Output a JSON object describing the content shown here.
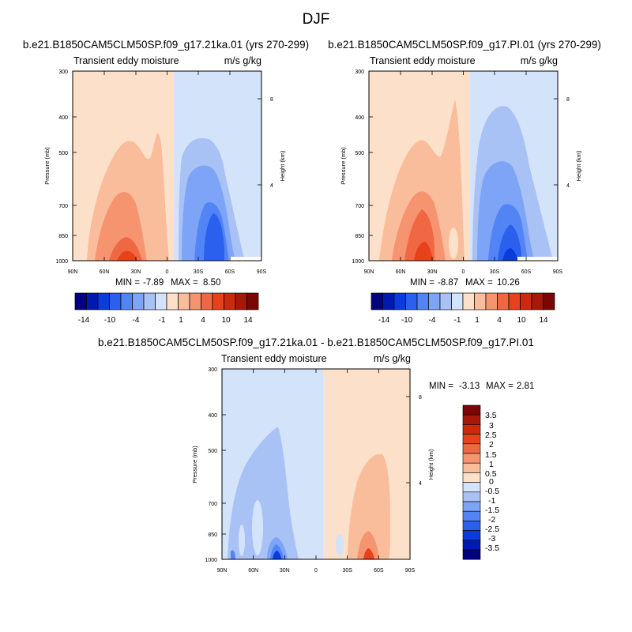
{
  "figure": {
    "title": "DJF"
  },
  "colors": {
    "full_scale": [
      "#000080",
      "#0019b0",
      "#0a3bdd",
      "#2b60ef",
      "#5384f5",
      "#7ea4f7",
      "#a8c2f5",
      "#d3e3fa",
      "#fde0c9",
      "#f9bd9c",
      "#f5946f",
      "#f06843",
      "#e8421d",
      "#cc2a0e",
      "#a8180a",
      "#7a0606"
    ],
    "diff_scale": [
      "#000080",
      "#0019b0",
      "#0a3bdd",
      "#2b60ef",
      "#5384f5",
      "#7ea4f7",
      "#a8c2f5",
      "#d3e3fa",
      "#fde0c9",
      "#f9bd9c",
      "#f5946f",
      "#f06843",
      "#e8421d",
      "#cc2a0e",
      "#a8180a",
      "#7a0606"
    ]
  },
  "chart_data": [
    {
      "type": "contour",
      "title": "b.e21.B1850CAM5CLM50SP.f09_g17.21ka.01 (yrs 270-299)",
      "left_label": "Transient eddy moisture",
      "right_label": "m/s g/kg",
      "ylabel": "Pressure (mb)",
      "y2label": "Height (km)",
      "x_ticks": [
        "90N",
        "60N",
        "30N",
        "0",
        "30S",
        "60S",
        "90S"
      ],
      "y_ticks": [
        300,
        400,
        500,
        700,
        850,
        1000
      ],
      "y2_ticks": [
        8,
        4
      ],
      "ylim": [
        1000,
        300
      ],
      "xlim": [
        "90N",
        "90S"
      ],
      "stats_min_label": "MIN =",
      "stats_min": "-7.89",
      "stats_max_label": "MAX =",
      "stats_max": "8.50",
      "contour_levels": [
        -14,
        -10,
        -7,
        -4,
        -2,
        -1,
        0,
        1,
        2,
        4,
        7,
        10,
        14
      ],
      "colorbar_labels": [
        "-14",
        "-10",
        "-4",
        "-1",
        "1",
        "4",
        "10",
        "14"
      ]
    },
    {
      "type": "contour",
      "title": "b.e21.B1850CAM5CLM50SP.f09_g17.PI.01 (yrs 270-299)",
      "left_label": "Transient eddy moisture",
      "right_label": "m/s g/kg",
      "ylabel": "Pressure (mb)",
      "y2label": "Height (km)",
      "x_ticks": [
        "90N",
        "60N",
        "30N",
        "0",
        "30S",
        "60S",
        "90S"
      ],
      "y_ticks": [
        300,
        400,
        500,
        700,
        850,
        1000
      ],
      "y2_ticks": [
        8,
        4
      ],
      "ylim": [
        1000,
        300
      ],
      "xlim": [
        "90N",
        "90S"
      ],
      "stats_min_label": "MIN =",
      "stats_min": "-8.87",
      "stats_max_label": "MAX =",
      "stats_max": "10.26",
      "contour_levels": [
        -14,
        -10,
        -7,
        -4,
        -2,
        -1,
        0,
        1,
        2,
        4,
        7,
        10,
        14
      ],
      "colorbar_labels": [
        "-14",
        "-10",
        "-4",
        "-1",
        "1",
        "4",
        "10",
        "14"
      ]
    },
    {
      "type": "contour",
      "title": "b.e21.B1850CAM5CLM50SP.f09_g17.21ka.01 - b.e21.B1850CAM5CLM50SP.f09_g17.PI.01",
      "left_label": "Transient eddy moisture",
      "right_label": "m/s g/kg",
      "ylabel": "Pressure (mb)",
      "y2label": "Height (km)",
      "x_ticks": [
        "90N",
        "60N",
        "30N",
        "0",
        "30S",
        "60S",
        "90S"
      ],
      "y_ticks": [
        300,
        400,
        500,
        700,
        850,
        1000
      ],
      "y2_ticks": [
        8,
        4
      ],
      "ylim": [
        1000,
        300
      ],
      "xlim": [
        "90N",
        "90S"
      ],
      "stats_min_label": "MIN =",
      "stats_min": "-3.13",
      "stats_max_label": "MAX =",
      "stats_max": "2.81",
      "contour_levels": [
        -3.5,
        -3,
        -2.5,
        -2,
        -1.5,
        -1,
        -0.5,
        0,
        0.5,
        1,
        1.5,
        2,
        2.5,
        3,
        3.5
      ],
      "colorbar_labels": [
        "3.5",
        "3",
        "2.5",
        "2",
        "1.5",
        "1",
        "0.5",
        "0",
        "-0.5",
        "-1",
        "-1.5",
        "-2",
        "-2.5",
        "-3",
        "-3.5"
      ]
    }
  ]
}
